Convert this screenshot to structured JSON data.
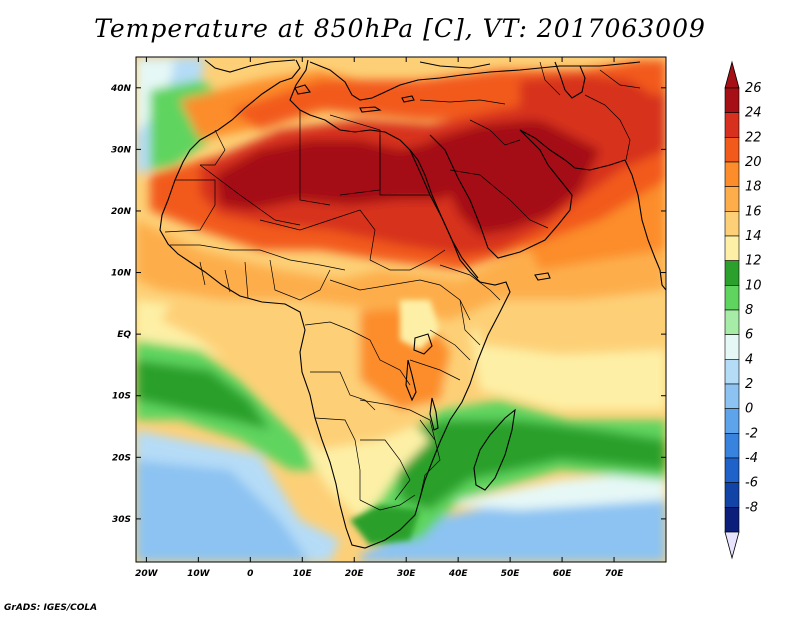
{
  "title": "Temperature at 850hPa [C], VT: 2017063009",
  "credit": "GrADS: IGES/COLA",
  "map": {
    "lon_range": [
      -22,
      80
    ],
    "lat_range": [
      -37,
      45
    ],
    "x_ticks": [
      {
        "lon": -20,
        "label": "20W"
      },
      {
        "lon": -10,
        "label": "10W"
      },
      {
        "lon": 0,
        "label": "0"
      },
      {
        "lon": 10,
        "label": "10E"
      },
      {
        "lon": 20,
        "label": "20E"
      },
      {
        "lon": 30,
        "label": "30E"
      },
      {
        "lon": 40,
        "label": "40E"
      },
      {
        "lon": 50,
        "label": "50E"
      },
      {
        "lon": 60,
        "label": "60E"
      },
      {
        "lon": 70,
        "label": "70E"
      }
    ],
    "y_ticks": [
      {
        "lat": 40,
        "label": "40N"
      },
      {
        "lat": 30,
        "label": "30N"
      },
      {
        "lat": 20,
        "label": "20N"
      },
      {
        "lat": 10,
        "label": "10N"
      },
      {
        "lat": 0,
        "label": "EQ"
      },
      {
        "lat": -10,
        "label": "10S"
      },
      {
        "lat": -20,
        "label": "20S"
      },
      {
        "lat": -30,
        "label": "30S"
      }
    ]
  },
  "colorbar": {
    "labels": [
      "26",
      "24",
      "22",
      "20",
      "18",
      "16",
      "14",
      "12",
      "10",
      "8",
      "6",
      "4",
      "2",
      "0",
      "-2",
      "-4",
      "-6",
      "-8"
    ],
    "colors": [
      "#a50f15",
      "#d7301f",
      "#f25a1c",
      "#fc8d2a",
      "#fdae4b",
      "#fdd077",
      "#fdf0a6",
      "#2ca02c",
      "#5fd45f",
      "#a6eca6",
      "#e6f8f6",
      "#b5dcf7",
      "#8cc3f2",
      "#5ea4ea",
      "#3883de",
      "#1f62c9",
      "#1244a8",
      "#0a1e7a"
    ],
    "over_color": "#a50f15",
    "under_color": "#e8e4ff"
  },
  "field_colors": {
    "ocean_cold": "#8cc3f2",
    "ocean_cool": "#b5dcf7",
    "ocean_mild": "#e6f8f6",
    "green_light": "#a6eca6",
    "green_mid": "#5fd45f",
    "green_dark": "#2ca02c",
    "yellow": "#fdf0a6",
    "yellow_orange": "#fdd077",
    "orange_light": "#fdae4b",
    "orange": "#fc8d2a",
    "red_orange": "#f25a1c",
    "red": "#d7301f",
    "dark_red": "#a50f15"
  }
}
